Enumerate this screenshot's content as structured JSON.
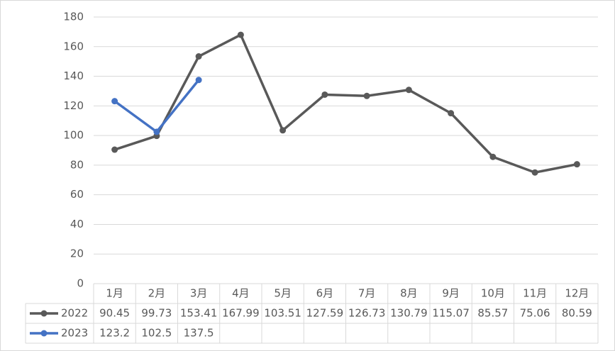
{
  "chart_data": {
    "type": "line",
    "categories": [
      "1月",
      "2月",
      "3月",
      "4月",
      "5月",
      "6月",
      "7月",
      "8月",
      "9月",
      "10月",
      "11月",
      "12月"
    ],
    "series": [
      {
        "name": "2022",
        "color": "#595959",
        "values": [
          90.45,
          99.73,
          153.41,
          167.99,
          103.51,
          127.59,
          126.73,
          130.79,
          115.07,
          85.57,
          75.06,
          80.59
        ]
      },
      {
        "name": "2023",
        "color": "#4472c4",
        "values": [
          123.2,
          102.5,
          137.5,
          null,
          null,
          null,
          null,
          null,
          null,
          null,
          null,
          null
        ]
      }
    ],
    "ylim": [
      0,
      180
    ],
    "yticks": [
      0,
      20,
      40,
      60,
      80,
      100,
      120,
      140,
      160,
      180
    ],
    "grid": true,
    "data_table": true
  }
}
